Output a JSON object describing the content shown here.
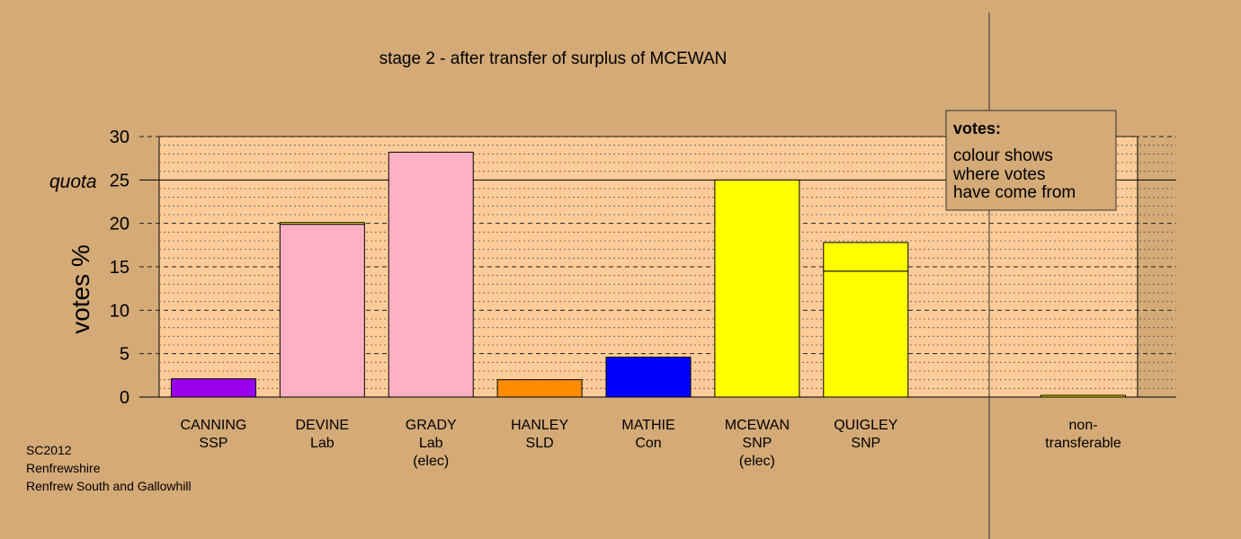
{
  "chart_data": {
    "type": "bar",
    "title": "stage 2 - after transfer of surplus of MCEWAN",
    "ylabel": "votes %",
    "ylim": [
      0,
      30
    ],
    "yticks": [
      0,
      5,
      10,
      15,
      20,
      25,
      30
    ],
    "quota": {
      "label": "quota",
      "value": 25
    },
    "categories": [
      {
        "name": "CANNING",
        "party": "SSP",
        "note": ""
      },
      {
        "name": "DEVINE",
        "party": "Lab",
        "note": ""
      },
      {
        "name": "GRADY",
        "party": "Lab",
        "note": "(elec)"
      },
      {
        "name": "HANLEY",
        "party": "SLD",
        "note": ""
      },
      {
        "name": "MATHIE",
        "party": "Con",
        "note": ""
      },
      {
        "name": "MCEWAN",
        "party": "SNP",
        "note": "(elec)"
      },
      {
        "name": "QUIGLEY",
        "party": "SNP",
        "note": ""
      },
      {
        "name": "",
        "party": "",
        "note": ""
      },
      {
        "name": "non-",
        "party": "transferable",
        "note": ""
      }
    ],
    "bars": [
      {
        "segments": [
          {
            "value": 2.1,
            "color": "#9900ee"
          }
        ]
      },
      {
        "segments": [
          {
            "value": 19.9,
            "color": "#ffb0c4"
          },
          {
            "value": 0.2,
            "color": "#ffff00"
          }
        ]
      },
      {
        "segments": [
          {
            "value": 28.2,
            "color": "#ffb0c4"
          }
        ]
      },
      {
        "segments": [
          {
            "value": 2.0,
            "color": "#ff8c00"
          }
        ]
      },
      {
        "segments": [
          {
            "value": 4.6,
            "color": "#0000ff"
          }
        ]
      },
      {
        "segments": [
          {
            "value": 25.0,
            "color": "#ffff00"
          }
        ]
      },
      {
        "segments": [
          {
            "value": 14.5,
            "color": "#ffff00"
          },
          {
            "value": 3.3,
            "color": "#ffff00"
          }
        ]
      },
      {
        "segments": []
      },
      {
        "segments": [
          {
            "value": 0.2,
            "color": "#ffff00"
          }
        ]
      }
    ],
    "legend": {
      "title": "votes:",
      "lines": [
        "colour shows",
        "where votes",
        "have come from"
      ],
      "placement": "top-right"
    },
    "colors": {
      "background": "#d4aa77",
      "plot_area": "#ffcc99"
    }
  },
  "footer": {
    "line1": "SC2012",
    "line2": "Renfrewshire",
    "line3": "Renfrew South and Gallowhill"
  }
}
